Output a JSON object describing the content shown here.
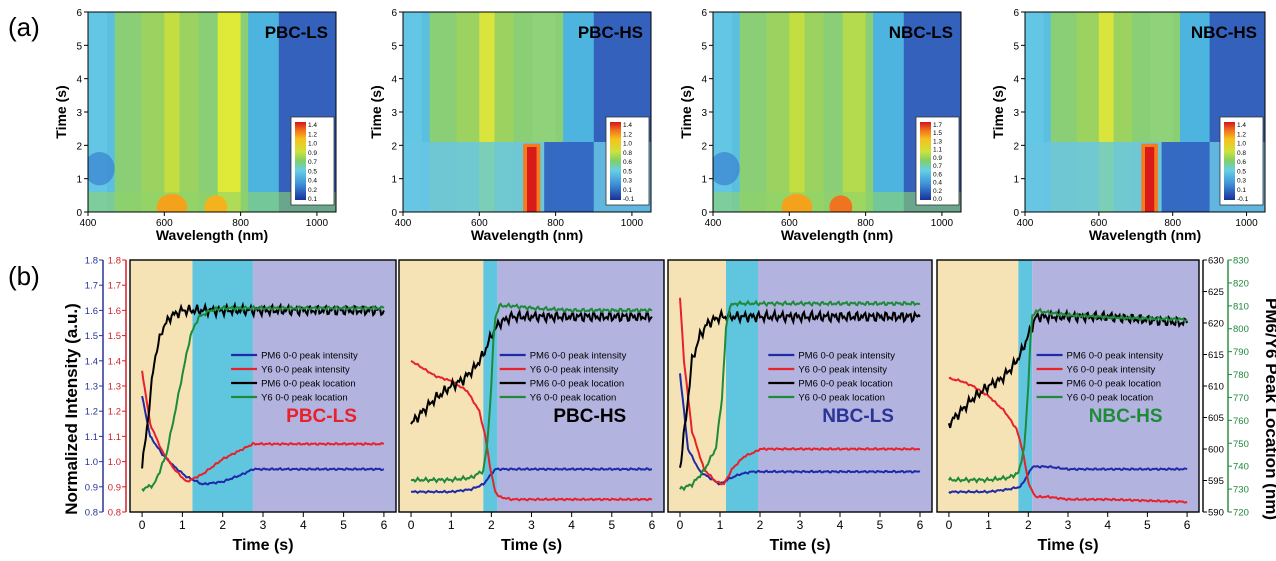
{
  "panel_a_label": "(a)",
  "panel_b_label": "(b)",
  "colors": {
    "pm6_intensity": "#1f2aa8",
    "y6_intensity": "#e8212a",
    "pm6_location": "#000000",
    "y6_location": "#1e8a3a",
    "stage1": "#f5e3b5",
    "stage2": "#60c6df",
    "stage3": "#b3b3df",
    "axis_left_red": "#d32027",
    "axis_left_blue": "#2a3398",
    "axis_right_black": "#000000",
    "axis_right_green": "#1e8a3a"
  },
  "heatmaps": [
    {
      "title": "PBC-LS",
      "xlabel": "Wavelength (nm)",
      "ylabel": "Time (s)",
      "x_ticks": [
        "400",
        "600",
        "800",
        "1000"
      ],
      "y_ticks": [
        "0",
        "1",
        "2",
        "3",
        "4",
        "5",
        "6"
      ],
      "colorbar_ticks": [
        "1.4",
        "1.2",
        "1.0",
        "0.9",
        "0.7",
        "0.5",
        "0.4",
        "0.2",
        "0.1"
      ]
    },
    {
      "title": "PBC-HS",
      "xlabel": "Wavelength (nm)",
      "ylabel": "Time (s)",
      "x_ticks": [
        "400",
        "600",
        "800",
        "1000"
      ],
      "y_ticks": [
        "0",
        "1",
        "2",
        "3",
        "4",
        "5",
        "6"
      ],
      "colorbar_ticks": [
        "1.4",
        "1.2",
        "1.0",
        "0.8",
        "0.6",
        "0.5",
        "0.3",
        "0.1",
        "-0.1"
      ]
    },
    {
      "title": "NBC-LS",
      "xlabel": "Wavelength (nm)",
      "ylabel": "Time (s)",
      "x_ticks": [
        "400",
        "600",
        "800",
        "1000"
      ],
      "y_ticks": [
        "0",
        "1",
        "2",
        "3",
        "4",
        "5",
        "6"
      ],
      "colorbar_ticks": [
        "1.7",
        "1.5",
        "1.3",
        "1.1",
        "0.9",
        "0.7",
        "0.6",
        "0.4",
        "0.2",
        "0.0"
      ]
    },
    {
      "title": "NBC-HS",
      "xlabel": "Wavelength (nm)",
      "ylabel": "Time (s)",
      "x_ticks": [
        "400",
        "600",
        "800",
        "1000"
      ],
      "y_ticks": [
        "0",
        "1",
        "2",
        "3",
        "4",
        "5",
        "6"
      ],
      "colorbar_ticks": [
        "1.4",
        "1.2",
        "1.0",
        "0.8",
        "0.6",
        "0.5",
        "0.3",
        "0.1",
        "-0.1"
      ]
    }
  ],
  "kinetics_axes": {
    "left_label": "Normalized Intensity (a.u.)",
    "right_label": "PM6/Y6 Peak Location (nm)",
    "x_label": "Time (s)",
    "x_ticks": [
      "0",
      "1",
      "2",
      "3",
      "4",
      "5",
      "6"
    ],
    "left_red_ticks": [
      "0.8",
      "0.9",
      "1.0",
      "1.1",
      "1.2",
      "1.3",
      "1.4",
      "1.5",
      "1.6",
      "1.7",
      "1.8"
    ],
    "left_blue_ticks": [
      "0.8",
      "0.9",
      "1.0",
      "1.1",
      "1.2",
      "1.3",
      "1.4",
      "1.5",
      "1.6",
      "1.7",
      "1.8"
    ],
    "right_black_ticks": [
      "590",
      "595",
      "600",
      "605",
      "610",
      "615",
      "620",
      "625",
      "630"
    ],
    "right_green_ticks": [
      "720",
      "730",
      "740",
      "750",
      "760",
      "770",
      "780",
      "790",
      "800",
      "810",
      "820",
      "830"
    ],
    "legend": [
      "PM6 0-0 peak intensity",
      "Y6 0-0 peak intensity",
      "PM6 0-0 peak location",
      "Y6 0-0 peak location"
    ]
  },
  "kinetic_titles": [
    "PBC-LS",
    "PBC-HS",
    "NBC-LS",
    "NBC-HS"
  ],
  "chart_data": [
    {
      "type": "heatmap",
      "title": "PBC-LS",
      "xlabel": "Wavelength (nm)",
      "ylabel": "Time (s)",
      "xlim": [
        400,
        1050
      ],
      "ylim": [
        0,
        6
      ]
    },
    {
      "type": "heatmap",
      "title": "PBC-HS",
      "xlabel": "Wavelength (nm)",
      "ylabel": "Time (s)",
      "xlim": [
        400,
        1050
      ],
      "ylim": [
        0,
        6
      ]
    },
    {
      "type": "heatmap",
      "title": "NBC-LS",
      "xlabel": "Wavelength (nm)",
      "ylabel": "Time (s)",
      "xlim": [
        400,
        1050
      ],
      "ylim": [
        0,
        6
      ]
    },
    {
      "type": "heatmap",
      "title": "NBC-HS",
      "xlabel": "Wavelength (nm)",
      "ylabel": "Time (s)",
      "xlim": [
        400,
        1050
      ],
      "ylim": [
        0,
        6
      ]
    },
    {
      "type": "line",
      "title": "PBC-LS",
      "xlabel": "Time (s)",
      "xlim": [
        -0.3,
        6.3
      ],
      "stages": [
        1.25,
        2.75
      ],
      "series": [
        {
          "name": "PM6 0-0 peak intensity",
          "axis": "left",
          "x": [
            0,
            0.2,
            0.5,
            0.8,
            1.1,
            1.5,
            2.0,
            2.5,
            2.75,
            3.0,
            4.0,
            6.0
          ],
          "values": [
            1.26,
            1.1,
            1.03,
            0.98,
            0.94,
            0.91,
            0.92,
            0.95,
            0.97,
            0.97,
            0.97,
            0.97
          ]
        },
        {
          "name": "Y6 0-0 peak intensity",
          "axis": "left",
          "x": [
            0,
            0.2,
            0.5,
            0.8,
            1.1,
            1.5,
            2.0,
            2.5,
            2.75,
            3.0,
            4.0,
            6.0
          ],
          "values": [
            1.36,
            1.15,
            1.04,
            0.97,
            0.92,
            0.95,
            1.01,
            1.05,
            1.07,
            1.07,
            1.07,
            1.07
          ]
        },
        {
          "name": "PM6 0-0 peak location",
          "axis": "right",
          "x": [
            0,
            0.15,
            0.3,
            0.5,
            0.7,
            1.0,
            1.5,
            2.0,
            3.0,
            4.0,
            6.0
          ],
          "values": [
            597,
            605,
            614,
            619,
            621,
            622,
            622,
            622,
            622,
            622,
            622
          ]
        },
        {
          "name": "Y6 0-0 peak location",
          "axis": "right_green",
          "x": [
            0,
            0.3,
            0.6,
            0.8,
            1.0,
            1.2,
            1.4,
            1.7,
            2.0,
            3.0,
            4.0,
            6.0
          ],
          "values": [
            730,
            732,
            745,
            762,
            780,
            797,
            805,
            808,
            809,
            809,
            809,
            809
          ]
        }
      ]
    },
    {
      "type": "line",
      "title": "PBC-HS",
      "xlabel": "Time (s)",
      "xlim": [
        -0.3,
        6.3
      ],
      "stages": [
        1.8,
        2.15
      ],
      "series": [
        {
          "name": "PM6 0-0 peak intensity",
          "axis": "left",
          "x": [
            0,
            0.5,
            1.0,
            1.5,
            1.8,
            2.0,
            2.1,
            2.2,
            2.5,
            3.0,
            4.0,
            6.0
          ],
          "values": [
            0.88,
            0.88,
            0.88,
            0.89,
            0.91,
            0.95,
            0.97,
            0.97,
            0.97,
            0.97,
            0.97,
            0.97
          ]
        },
        {
          "name": "Y6 0-0 peak intensity",
          "axis": "left",
          "x": [
            0,
            0.3,
            0.6,
            1.0,
            1.4,
            1.7,
            1.85,
            2.0,
            2.1,
            2.2,
            2.5,
            3.0,
            4.0,
            6.0
          ],
          "values": [
            1.4,
            1.37,
            1.34,
            1.32,
            1.28,
            1.2,
            1.1,
            0.95,
            0.88,
            0.86,
            0.85,
            0.85,
            0.85,
            0.85
          ]
        },
        {
          "name": "PM6 0-0 peak location",
          "axis": "right",
          "x": [
            0,
            0.3,
            0.6,
            1.0,
            1.3,
            1.6,
            1.8,
            2.0,
            2.2,
            2.5,
            3.0,
            4.0,
            6.0
          ],
          "values": [
            604,
            606,
            608,
            610,
            611,
            613,
            615,
            618,
            620,
            621,
            621,
            621,
            621
          ]
        },
        {
          "name": "Y6 0-0 peak location",
          "axis": "right_green",
          "x": [
            0,
            0.5,
            1.0,
            1.5,
            1.8,
            1.9,
            2.0,
            2.05,
            2.1,
            2.2,
            2.5,
            3.0,
            4.0,
            6.0
          ],
          "values": [
            734,
            734,
            734,
            735,
            738,
            750,
            775,
            795,
            805,
            810,
            810,
            809,
            808,
            808
          ]
        }
      ]
    },
    {
      "type": "line",
      "title": "NBC-LS",
      "xlabel": "Time (s)",
      "xlim": [
        -0.3,
        6.3
      ],
      "stages": [
        1.15,
        1.95
      ],
      "series": [
        {
          "name": "PM6 0-0 peak intensity",
          "axis": "left",
          "x": [
            0,
            0.2,
            0.5,
            0.8,
            1.0,
            1.2,
            1.5,
            1.8,
            2.0,
            2.5,
            3.0,
            6.0
          ],
          "values": [
            1.35,
            1.05,
            0.96,
            0.93,
            0.91,
            0.93,
            0.95,
            0.96,
            0.96,
            0.96,
            0.96,
            0.96
          ]
        },
        {
          "name": "Y6 0-0 peak intensity",
          "axis": "left",
          "x": [
            0,
            0.1,
            0.3,
            0.6,
            0.9,
            1.1,
            1.3,
            1.6,
            1.9,
            2.0,
            3.0,
            6.0
          ],
          "values": [
            1.65,
            1.4,
            1.12,
            0.97,
            0.92,
            0.91,
            0.97,
            1.02,
            1.04,
            1.05,
            1.05,
            1.05
          ]
        },
        {
          "name": "PM6 0-0 peak location",
          "axis": "right",
          "x": [
            0,
            0.15,
            0.3,
            0.5,
            0.7,
            1.0,
            1.3,
            2.0,
            3.0,
            6.0
          ],
          "values": [
            597,
            605,
            614,
            618,
            620,
            621,
            621,
            621,
            621,
            621
          ]
        },
        {
          "name": "Y6 0-0 peak location",
          "axis": "right_green",
          "x": [
            0,
            0.3,
            0.6,
            0.9,
            1.05,
            1.15,
            1.25,
            1.4,
            1.6,
            2.0,
            3.0,
            6.0
          ],
          "values": [
            730,
            732,
            738,
            748,
            770,
            800,
            810,
            811,
            811,
            811,
            811,
            811
          ]
        }
      ]
    },
    {
      "type": "line",
      "title": "NBC-HS",
      "xlabel": "Time (s)",
      "xlim": [
        -0.3,
        6.3
      ],
      "stages": [
        1.75,
        2.1
      ],
      "series": [
        {
          "name": "PM6 0-0 peak intensity",
          "axis": "left",
          "x": [
            0,
            0.5,
            1.0,
            1.5,
            1.8,
            2.0,
            2.1,
            2.2,
            2.5,
            3.0,
            4.0,
            6.0
          ],
          "values": [
            0.88,
            0.88,
            0.88,
            0.89,
            0.9,
            0.95,
            0.98,
            0.98,
            0.98,
            0.97,
            0.97,
            0.97
          ]
        },
        {
          "name": "Y6 0-0 peak intensity",
          "axis": "left",
          "x": [
            0,
            0.3,
            0.6,
            1.0,
            1.4,
            1.7,
            1.85,
            2.0,
            2.1,
            2.2,
            2.5,
            3.0,
            4.0,
            6.0
          ],
          "values": [
            1.33,
            1.32,
            1.3,
            1.26,
            1.2,
            1.13,
            1.05,
            0.92,
            0.88,
            0.86,
            0.86,
            0.85,
            0.85,
            0.84
          ]
        },
        {
          "name": "PM6 0-0 peak location",
          "axis": "right",
          "x": [
            0,
            0.3,
            0.6,
            1.0,
            1.3,
            1.6,
            1.8,
            2.0,
            2.2,
            2.5,
            3.0,
            4.0,
            6.0
          ],
          "values": [
            604,
            606,
            608,
            610,
            611,
            613,
            615,
            618,
            621,
            621,
            621,
            621,
            620
          ]
        },
        {
          "name": "Y6 0-0 peak location",
          "axis": "right_green",
          "x": [
            0,
            0.5,
            1.0,
            1.5,
            1.75,
            1.9,
            2.0,
            2.05,
            2.1,
            2.2,
            2.5,
            3.0,
            4.0,
            6.0
          ],
          "values": [
            734,
            734,
            734,
            735,
            737,
            748,
            775,
            795,
            805,
            808,
            807,
            806,
            805,
            804
          ]
        }
      ]
    }
  ]
}
